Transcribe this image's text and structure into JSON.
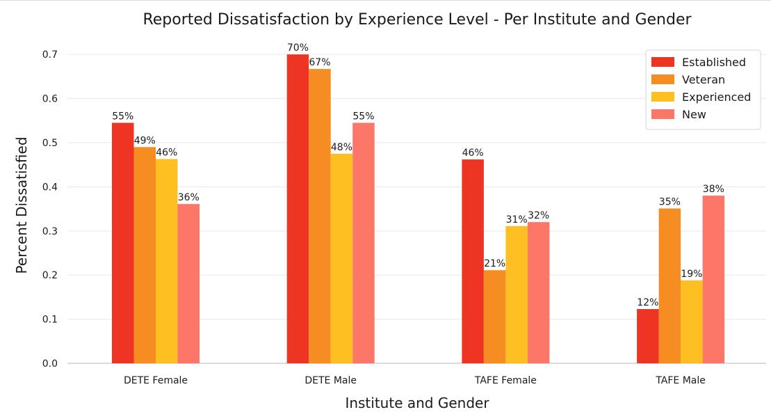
{
  "chart_data": {
    "type": "bar",
    "title": "Reported Dissatisfaction by Experience Level - Per Institute and Gender",
    "xlabel": "Institute and Gender",
    "ylabel": "Percent Dissatisfied",
    "categories": [
      "DETE Female",
      "DETE Male",
      "TAFE Female",
      "TAFE Male"
    ],
    "series": [
      {
        "name": "Established",
        "color": "#ee3524",
        "values": [
          0.545,
          0.7,
          0.462,
          0.123
        ]
      },
      {
        "name": "Veteran",
        "color": "#f58d22",
        "values": [
          0.49,
          0.667,
          0.211,
          0.351
        ]
      },
      {
        "name": "Experienced",
        "color": "#fdbf22",
        "values": [
          0.463,
          0.475,
          0.311,
          0.188
        ]
      },
      {
        "name": "New",
        "color": "#fd7769",
        "values": [
          0.361,
          0.545,
          0.32,
          0.38
        ]
      }
    ],
    "data_labels": [
      [
        "55%",
        "70%",
        "46%",
        "12%"
      ],
      [
        "49%",
        "67%",
        "21%",
        "35%"
      ],
      [
        "46%",
        "48%",
        "31%",
        "19%"
      ],
      [
        "36%",
        "55%",
        "32%",
        "38%"
      ]
    ],
    "yticks": [
      0.0,
      0.1,
      0.2,
      0.3,
      0.4,
      0.5,
      0.6,
      0.7
    ],
    "ytick_labels": [
      "0.0",
      "0.1",
      "0.2",
      "0.3",
      "0.4",
      "0.5",
      "0.6",
      "0.7"
    ],
    "ylim": [
      0,
      0.735
    ],
    "grid": "horizontal",
    "legend_position": "top-right"
  }
}
